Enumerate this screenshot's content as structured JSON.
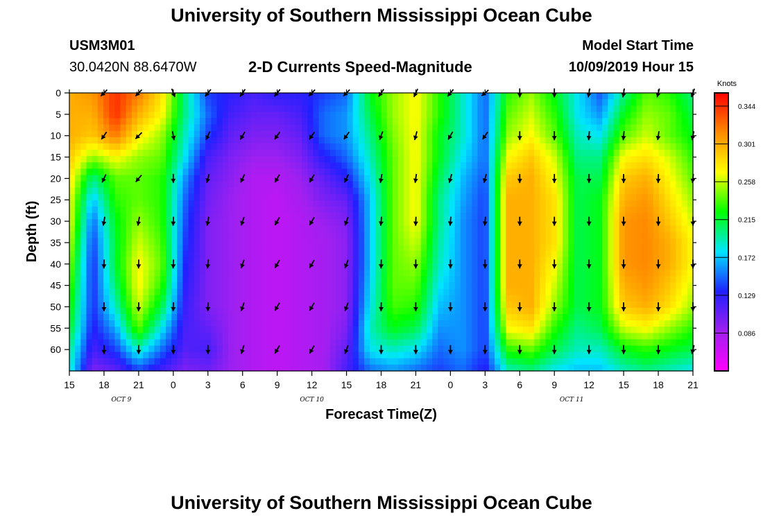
{
  "header": {
    "top_title": "University of Southern Mississippi Ocean Cube",
    "station_id": "USM3M01",
    "station_coords": "30.0420N 88.6470W",
    "chart_title": "2-D Currents Speed-Magnitude",
    "model_start_label": "Model Start Time",
    "model_start_value": "10/09/2019 Hour 15",
    "bottom_title": "University of Southern Mississippi Ocean Cube"
  },
  "chart_data": {
    "type": "heatmap",
    "title": "2-D Currents Speed-Magnitude",
    "xlabel": "Forecast Time(Z)",
    "ylabel": "Depth (ft)",
    "x_hours": [
      0,
      6,
      12,
      18,
      24,
      30,
      36,
      42,
      48,
      54,
      60,
      66,
      72,
      78,
      84,
      90,
      96,
      102,
      108,
      114,
      120,
      126,
      132,
      138,
      144,
      150,
      156,
      162
    ],
    "x_ticks": [
      {
        "hour": 0,
        "label": "15"
      },
      {
        "hour": 9,
        "label": "18"
      },
      {
        "hour": 18,
        "label": "21"
      },
      {
        "hour": 27,
        "label": "0"
      },
      {
        "hour": 36,
        "label": "3"
      },
      {
        "hour": 45,
        "label": "6"
      },
      {
        "hour": 54,
        "label": "9"
      },
      {
        "hour": 63,
        "label": "12"
      },
      {
        "hour": 72,
        "label": "15"
      },
      {
        "hour": 81,
        "label": "18"
      },
      {
        "hour": 90,
        "label": "21"
      },
      {
        "hour": 99,
        "label": "0"
      },
      {
        "hour": 108,
        "label": "3"
      },
      {
        "hour": 117,
        "label": "6"
      },
      {
        "hour": 126,
        "label": "9"
      },
      {
        "hour": 135,
        "label": "12"
      },
      {
        "hour": 144,
        "label": "15"
      },
      {
        "hour": 153,
        "label": "18"
      },
      {
        "hour": 162,
        "label": "21"
      }
    ],
    "date_labels": [
      {
        "hour": 13.5,
        "label": "OCT 9"
      },
      {
        "hour": 63,
        "label": "OCT 10"
      },
      {
        "hour": 130.5,
        "label": "OCT 11"
      }
    ],
    "xlim": [
      0,
      162
    ],
    "depths_ft": [
      0,
      5,
      10,
      15,
      20,
      25,
      30,
      35,
      40,
      45,
      50,
      55,
      60,
      65
    ],
    "y_ticks": [
      0,
      5,
      10,
      15,
      20,
      25,
      30,
      35,
      40,
      45,
      50,
      55,
      60
    ],
    "ylim": [
      0,
      65
    ],
    "values": [
      [
        0.3,
        0.3,
        0.3,
        0.29,
        0.28,
        0.27,
        0.27,
        0.26,
        0.25,
        0.24,
        0.23,
        0.22,
        0.2,
        0.19
      ],
      [
        0.31,
        0.3,
        0.29,
        0.25,
        0.2,
        0.17,
        0.15,
        0.14,
        0.135,
        0.135,
        0.135,
        0.13,
        0.12,
        0.1
      ],
      [
        0.344,
        0.344,
        0.32,
        0.27,
        0.24,
        0.23,
        0.22,
        0.215,
        0.215,
        0.205,
        0.19,
        0.165,
        0.14,
        0.11
      ],
      [
        0.32,
        0.3,
        0.275,
        0.25,
        0.24,
        0.24,
        0.25,
        0.26,
        0.27,
        0.27,
        0.26,
        0.24,
        0.19,
        0.14
      ],
      [
        0.28,
        0.27,
        0.25,
        0.24,
        0.23,
        0.23,
        0.23,
        0.235,
        0.24,
        0.23,
        0.21,
        0.18,
        0.15,
        0.12
      ],
      [
        0.2,
        0.2,
        0.19,
        0.18,
        0.16,
        0.15,
        0.145,
        0.14,
        0.135,
        0.13,
        0.125,
        0.12,
        0.115,
        0.1
      ],
      [
        0.14,
        0.15,
        0.14,
        0.12,
        0.11,
        0.105,
        0.1,
        0.1,
        0.1,
        0.1,
        0.1,
        0.11,
        0.12,
        0.105
      ],
      [
        0.13,
        0.12,
        0.11,
        0.1,
        0.095,
        0.09,
        0.09,
        0.09,
        0.09,
        0.09,
        0.09,
        0.09,
        0.09,
        0.09
      ],
      [
        0.12,
        0.11,
        0.1,
        0.09,
        0.08,
        0.08,
        0.08,
        0.08,
        0.08,
        0.08,
        0.08,
        0.08,
        0.08,
        0.08
      ],
      [
        0.13,
        0.11,
        0.1,
        0.09,
        0.08,
        0.075,
        0.075,
        0.075,
        0.075,
        0.075,
        0.075,
        0.075,
        0.075,
        0.075
      ],
      [
        0.13,
        0.12,
        0.11,
        0.1,
        0.09,
        0.085,
        0.08,
        0.08,
        0.08,
        0.08,
        0.08,
        0.08,
        0.08,
        0.08
      ],
      [
        0.14,
        0.15,
        0.15,
        0.13,
        0.11,
        0.1,
        0.09,
        0.085,
        0.085,
        0.085,
        0.085,
        0.085,
        0.085,
        0.085
      ],
      [
        0.15,
        0.16,
        0.16,
        0.15,
        0.13,
        0.11,
        0.1,
        0.095,
        0.095,
        0.095,
        0.095,
        0.1,
        0.11,
        0.12
      ],
      [
        0.22,
        0.21,
        0.2,
        0.19,
        0.18,
        0.17,
        0.17,
        0.17,
        0.17,
        0.175,
        0.18,
        0.19,
        0.18,
        0.15
      ],
      [
        0.25,
        0.25,
        0.245,
        0.24,
        0.24,
        0.24,
        0.24,
        0.24,
        0.24,
        0.24,
        0.235,
        0.22,
        0.19,
        0.16
      ],
      [
        0.27,
        0.27,
        0.27,
        0.27,
        0.27,
        0.27,
        0.27,
        0.26,
        0.25,
        0.24,
        0.23,
        0.21,
        0.18,
        0.15
      ],
      [
        0.23,
        0.23,
        0.22,
        0.22,
        0.21,
        0.2,
        0.2,
        0.195,
        0.19,
        0.18,
        0.17,
        0.16,
        0.15,
        0.14
      ],
      [
        0.19,
        0.19,
        0.19,
        0.18,
        0.17,
        0.165,
        0.16,
        0.16,
        0.16,
        0.16,
        0.16,
        0.16,
        0.16,
        0.15
      ],
      [
        0.15,
        0.15,
        0.15,
        0.15,
        0.145,
        0.14,
        0.14,
        0.14,
        0.14,
        0.14,
        0.14,
        0.14,
        0.14,
        0.13
      ],
      [
        0.23,
        0.24,
        0.25,
        0.27,
        0.29,
        0.3,
        0.3,
        0.3,
        0.3,
        0.3,
        0.29,
        0.27,
        0.23,
        0.19
      ],
      [
        0.25,
        0.26,
        0.27,
        0.29,
        0.3,
        0.3,
        0.3,
        0.3,
        0.3,
        0.3,
        0.3,
        0.28,
        0.24,
        0.2
      ],
      [
        0.22,
        0.23,
        0.24,
        0.26,
        0.27,
        0.28,
        0.28,
        0.28,
        0.27,
        0.26,
        0.25,
        0.23,
        0.21,
        0.18
      ],
      [
        0.18,
        0.18,
        0.19,
        0.2,
        0.21,
        0.21,
        0.21,
        0.21,
        0.21,
        0.21,
        0.21,
        0.2,
        0.19,
        0.17
      ],
      [
        0.145,
        0.16,
        0.18,
        0.2,
        0.21,
        0.22,
        0.22,
        0.22,
        0.22,
        0.22,
        0.22,
        0.21,
        0.19,
        0.17
      ],
      [
        0.2,
        0.22,
        0.24,
        0.27,
        0.29,
        0.3,
        0.31,
        0.31,
        0.31,
        0.3,
        0.29,
        0.26,
        0.22,
        0.19
      ],
      [
        0.24,
        0.25,
        0.26,
        0.28,
        0.3,
        0.31,
        0.315,
        0.315,
        0.315,
        0.31,
        0.3,
        0.27,
        0.23,
        0.2
      ],
      [
        0.23,
        0.24,
        0.24,
        0.26,
        0.27,
        0.28,
        0.29,
        0.3,
        0.3,
        0.29,
        0.28,
        0.25,
        0.22,
        0.19
      ],
      [
        0.2,
        0.21,
        0.22,
        0.23,
        0.24,
        0.25,
        0.26,
        0.27,
        0.27,
        0.26,
        0.25,
        0.23,
        0.21,
        0.18
      ]
    ],
    "vector_hours": [
      9,
      18,
      27,
      36,
      45,
      54,
      63,
      72,
      81,
      90,
      99,
      108,
      117,
      126,
      135,
      144,
      153,
      162
    ],
    "vector_depths_ft": [
      0,
      10,
      20,
      30,
      40,
      50,
      60
    ],
    "vector_directions_deg": [
      [
        225,
        235,
        245,
        260,
        268,
        270,
        270
      ],
      [
        225,
        225,
        230,
        260,
        268,
        268,
        270
      ],
      [
        290,
        280,
        270,
        268,
        268,
        268,
        270
      ],
      [
        230,
        245,
        255,
        260,
        265,
        268,
        270
      ],
      [
        235,
        240,
        245,
        250,
        250,
        250,
        252
      ],
      [
        230,
        235,
        240,
        240,
        240,
        240,
        240
      ],
      [
        225,
        235,
        240,
        240,
        240,
        240,
        240
      ],
      [
        225,
        235,
        245,
        250,
        250,
        250,
        250
      ],
      [
        235,
        250,
        260,
        265,
        268,
        268,
        270
      ],
      [
        245,
        255,
        262,
        268,
        270,
        270,
        270
      ],
      [
        230,
        240,
        255,
        265,
        270,
        270,
        270
      ],
      [
        220,
        235,
        255,
        265,
        270,
        270,
        270
      ],
      [
        270,
        270,
        270,
        270,
        270,
        270,
        270
      ],
      [
        270,
        270,
        270,
        270,
        270,
        270,
        270
      ],
      [
        260,
        265,
        270,
        270,
        270,
        270,
        270
      ],
      [
        260,
        265,
        270,
        270,
        270,
        270,
        270
      ],
      [
        255,
        262,
        268,
        270,
        270,
        270,
        270
      ],
      [
        250,
        258,
        265,
        270,
        270,
        270,
        255
      ]
    ],
    "colorbar": {
      "label": "Knots",
      "min": 0.043,
      "max": 0.359,
      "ticks": [
        "0.344",
        "0.301",
        "0.258",
        "0.215",
        "0.172",
        "0.129",
        "0.086"
      ],
      "tick_values": [
        0.344,
        0.301,
        0.258,
        0.215,
        0.172,
        0.129,
        0.086
      ]
    },
    "colors": {
      "colormap": [
        "#ff00ff",
        "#a020f0",
        "#2020ff",
        "#00e5ff",
        "#00ff00",
        "#ffff00",
        "#ff8c00",
        "#ff0000"
      ],
      "axis": "#000000",
      "vector": "#000000"
    }
  }
}
